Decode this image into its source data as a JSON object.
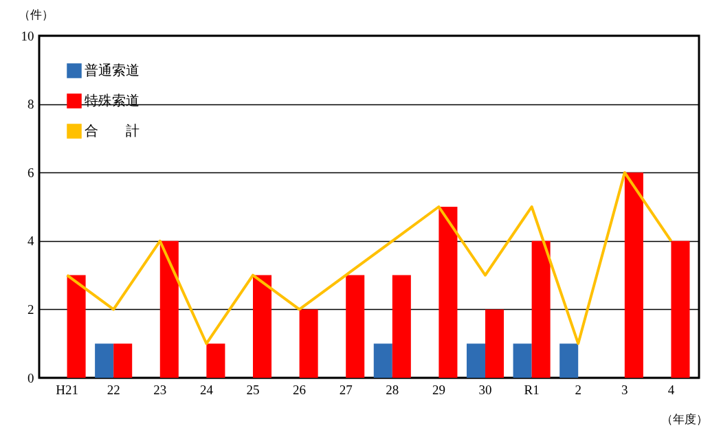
{
  "chart_data": {
    "type": "bar",
    "ylabel": "（件）",
    "xlabel": "（年度）",
    "categories": [
      "H21",
      "22",
      "23",
      "24",
      "25",
      "26",
      "27",
      "28",
      "29",
      "30",
      "R1",
      "2",
      "3",
      "4"
    ],
    "series": [
      {
        "name": "普通索道",
        "color": "#2e6db4",
        "values": [
          0,
          1,
          0,
          0,
          0,
          0,
          0,
          1,
          0,
          1,
          1,
          1,
          0,
          0
        ]
      },
      {
        "name": "特殊索道",
        "color": "#ff0000",
        "values": [
          3,
          1,
          4,
          1,
          3,
          2,
          3,
          3,
          5,
          2,
          4,
          0,
          6,
          4
        ]
      },
      {
        "name": "合　　計",
        "type": "line",
        "color": "#ffc000",
        "values": [
          3,
          2,
          4,
          1,
          3,
          2,
          3,
          4,
          5,
          3,
          5,
          1,
          6,
          4
        ]
      }
    ],
    "ylim": [
      0,
      10
    ],
    "yticks": [
      0,
      2,
      4,
      6,
      8,
      10
    ],
    "grid": "y",
    "legend": "top left"
  }
}
